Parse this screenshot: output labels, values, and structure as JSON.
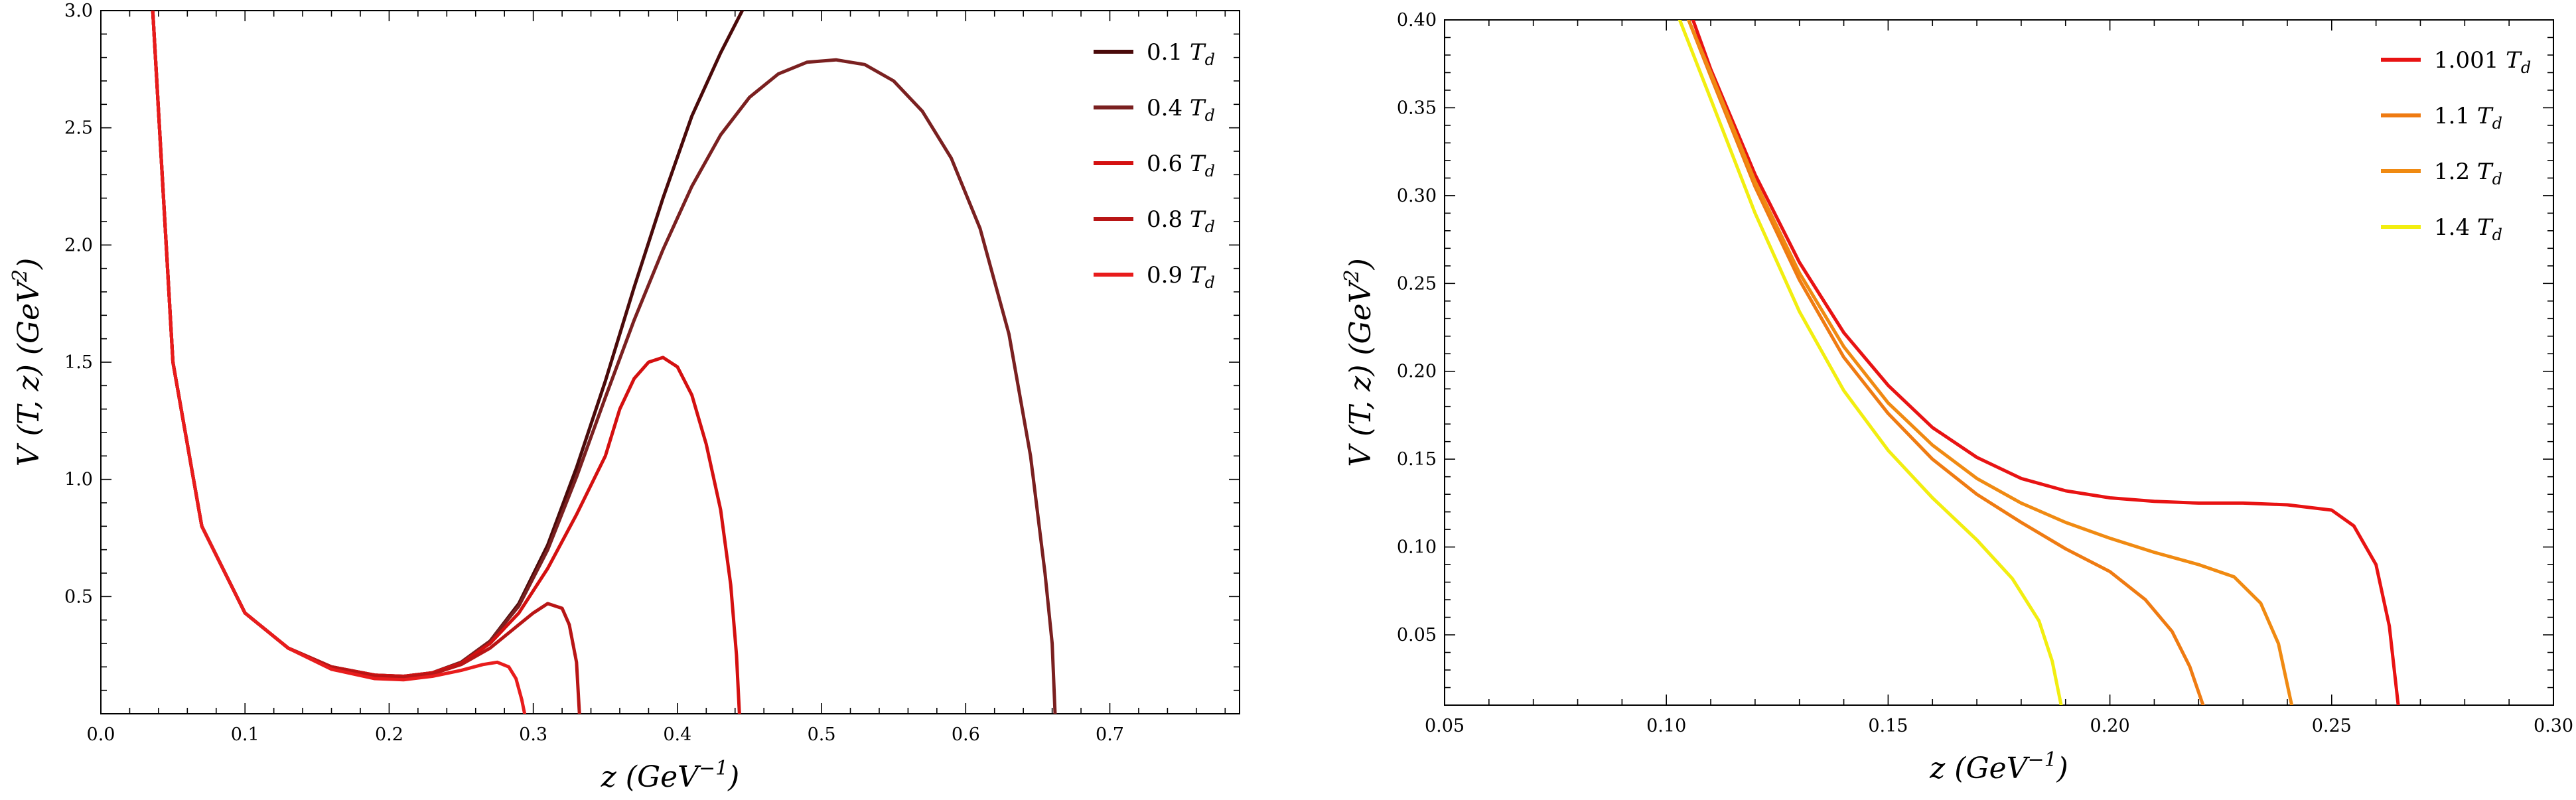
{
  "chart_data": [
    {
      "type": "line",
      "title": "",
      "xlabel": "z  (GeV⁻¹)",
      "ylabel": "V (T, z)  (GeV²)",
      "xlim": [
        0.0,
        0.79
      ],
      "ylim": [
        0.0,
        3.0
      ],
      "xticks": [
        0.0,
        0.1,
        0.2,
        0.3,
        0.4,
        0.5,
        0.6,
        0.7
      ],
      "xtick_labels": [
        "0.0",
        "0.1",
        "0.2",
        "0.3",
        "0.4",
        "0.5",
        "0.6",
        "0.7"
      ],
      "yticks": [
        0.5,
        1.0,
        1.5,
        2.0,
        2.5,
        3.0
      ],
      "ytick_labels": [
        "0.5",
        "1.0",
        "1.5",
        "2.0",
        "2.5",
        "3.0"
      ],
      "grid": false,
      "legend_position": "top-right",
      "series": [
        {
          "name": "0.1 Td",
          "color": "#4a0a0a",
          "points": [
            [
              0.036,
              3.0
            ],
            [
              0.05,
              1.5
            ],
            [
              0.07,
              0.8
            ],
            [
              0.1,
              0.43
            ],
            [
              0.13,
              0.28
            ],
            [
              0.16,
              0.2
            ],
            [
              0.19,
              0.165
            ],
            [
              0.21,
              0.16
            ],
            [
              0.23,
              0.175
            ],
            [
              0.25,
              0.22
            ],
            [
              0.27,
              0.31
            ],
            [
              0.29,
              0.47
            ],
            [
              0.31,
              0.72
            ],
            [
              0.33,
              1.05
            ],
            [
              0.35,
              1.42
            ],
            [
              0.37,
              1.82
            ],
            [
              0.39,
              2.2
            ],
            [
              0.41,
              2.55
            ],
            [
              0.43,
              2.82
            ],
            [
              0.445,
              3.0
            ]
          ]
        },
        {
          "name": "0.4 Td",
          "color": "#7a2020",
          "points": [
            [
              0.036,
              3.0
            ],
            [
              0.05,
              1.5
            ],
            [
              0.07,
              0.8
            ],
            [
              0.1,
              0.43
            ],
            [
              0.13,
              0.28
            ],
            [
              0.16,
              0.2
            ],
            [
              0.19,
              0.165
            ],
            [
              0.21,
              0.16
            ],
            [
              0.23,
              0.175
            ],
            [
              0.25,
              0.22
            ],
            [
              0.27,
              0.31
            ],
            [
              0.29,
              0.46
            ],
            [
              0.31,
              0.7
            ],
            [
              0.33,
              1.01
            ],
            [
              0.35,
              1.35
            ],
            [
              0.37,
              1.68
            ],
            [
              0.39,
              1.98
            ],
            [
              0.41,
              2.25
            ],
            [
              0.43,
              2.47
            ],
            [
              0.45,
              2.63
            ],
            [
              0.47,
              2.73
            ],
            [
              0.49,
              2.78
            ],
            [
              0.51,
              2.79
            ],
            [
              0.53,
              2.77
            ],
            [
              0.55,
              2.7
            ],
            [
              0.57,
              2.57
            ],
            [
              0.59,
              2.37
            ],
            [
              0.61,
              2.07
            ],
            [
              0.63,
              1.62
            ],
            [
              0.645,
              1.1
            ],
            [
              0.655,
              0.6
            ],
            [
              0.66,
              0.3
            ],
            [
              0.662,
              0.0
            ]
          ]
        },
        {
          "name": "0.6 Td",
          "color": "#d41010",
          "points": [
            [
              0.036,
              3.0
            ],
            [
              0.05,
              1.5
            ],
            [
              0.07,
              0.8
            ],
            [
              0.1,
              0.43
            ],
            [
              0.13,
              0.28
            ],
            [
              0.16,
              0.2
            ],
            [
              0.19,
              0.165
            ],
            [
              0.21,
              0.16
            ],
            [
              0.23,
              0.175
            ],
            [
              0.25,
              0.215
            ],
            [
              0.27,
              0.3
            ],
            [
              0.29,
              0.43
            ],
            [
              0.31,
              0.62
            ],
            [
              0.33,
              0.85
            ],
            [
              0.35,
              1.1
            ],
            [
              0.36,
              1.3
            ],
            [
              0.37,
              1.43
            ],
            [
              0.38,
              1.5
            ],
            [
              0.39,
              1.52
            ],
            [
              0.4,
              1.48
            ],
            [
              0.41,
              1.36
            ],
            [
              0.42,
              1.15
            ],
            [
              0.43,
              0.87
            ],
            [
              0.437,
              0.55
            ],
            [
              0.441,
              0.25
            ],
            [
              0.443,
              0.0
            ]
          ]
        },
        {
          "name": "0.8 Td",
          "color": "#b81515",
          "points": [
            [
              0.036,
              3.0
            ],
            [
              0.05,
              1.5
            ],
            [
              0.07,
              0.8
            ],
            [
              0.1,
              0.43
            ],
            [
              0.13,
              0.28
            ],
            [
              0.16,
              0.2
            ],
            [
              0.19,
              0.16
            ],
            [
              0.21,
              0.155
            ],
            [
              0.23,
              0.17
            ],
            [
              0.25,
              0.21
            ],
            [
              0.27,
              0.28
            ],
            [
              0.29,
              0.38
            ],
            [
              0.3,
              0.43
            ],
            [
              0.31,
              0.47
            ],
            [
              0.32,
              0.45
            ],
            [
              0.325,
              0.38
            ],
            [
              0.33,
              0.22
            ],
            [
              0.332,
              0.0
            ]
          ]
        },
        {
          "name": "0.9 Td",
          "color": "#e81c1c",
          "points": [
            [
              0.036,
              3.0
            ],
            [
              0.05,
              1.5
            ],
            [
              0.07,
              0.8
            ],
            [
              0.1,
              0.43
            ],
            [
              0.13,
              0.28
            ],
            [
              0.16,
              0.19
            ],
            [
              0.19,
              0.15
            ],
            [
              0.21,
              0.145
            ],
            [
              0.23,
              0.16
            ],
            [
              0.25,
              0.185
            ],
            [
              0.265,
              0.21
            ],
            [
              0.275,
              0.22
            ],
            [
              0.283,
              0.2
            ],
            [
              0.288,
              0.15
            ],
            [
              0.292,
              0.06
            ],
            [
              0.294,
              0.0
            ]
          ]
        }
      ]
    },
    {
      "type": "line",
      "title": "",
      "xlabel": "z  (GeV⁻¹)",
      "ylabel": "V (T, z)  (GeV²)",
      "xlim": [
        0.05,
        0.3
      ],
      "ylim": [
        0.01,
        0.4
      ],
      "xticks": [
        0.05,
        0.1,
        0.15,
        0.2,
        0.25,
        0.3
      ],
      "xtick_labels": [
        "0.05",
        "0.10",
        "0.15",
        "0.20",
        "0.25",
        "0.30"
      ],
      "yticks": [
        0.05,
        0.1,
        0.15,
        0.2,
        0.25,
        0.3,
        0.35,
        0.4
      ],
      "ytick_labels": [
        "0.05",
        "0.10",
        "0.15",
        "0.20",
        "0.25",
        "0.30",
        "0.35",
        "0.40"
      ],
      "grid": false,
      "legend_position": "top-right",
      "series": [
        {
          "name": "1.001 Td",
          "color": "#e81313",
          "points": [
            [
              0.106,
              0.4
            ],
            [
              0.11,
              0.372
            ],
            [
              0.12,
              0.312
            ],
            [
              0.13,
              0.262
            ],
            [
              0.14,
              0.222
            ],
            [
              0.15,
              0.192
            ],
            [
              0.16,
              0.168
            ],
            [
              0.17,
              0.151
            ],
            [
              0.18,
              0.139
            ],
            [
              0.19,
              0.132
            ],
            [
              0.2,
              0.128
            ],
            [
              0.21,
              0.126
            ],
            [
              0.22,
              0.125
            ],
            [
              0.23,
              0.125
            ],
            [
              0.24,
              0.124
            ],
            [
              0.25,
              0.121
            ],
            [
              0.255,
              0.112
            ],
            [
              0.26,
              0.09
            ],
            [
              0.263,
              0.055
            ],
            [
              0.265,
              0.01
            ]
          ]
        },
        {
          "name": "1.1 Td",
          "color": "#ef7b12",
          "points": [
            [
              0.105,
              0.4
            ],
            [
              0.11,
              0.368
            ],
            [
              0.12,
              0.305
            ],
            [
              0.13,
              0.252
            ],
            [
              0.14,
              0.208
            ],
            [
              0.15,
              0.176
            ],
            [
              0.16,
              0.15
            ],
            [
              0.17,
              0.13
            ],
            [
              0.18,
              0.114
            ],
            [
              0.19,
              0.099
            ],
            [
              0.2,
              0.086
            ],
            [
              0.208,
              0.07
            ],
            [
              0.214,
              0.052
            ],
            [
              0.218,
              0.032
            ],
            [
              0.221,
              0.01
            ]
          ]
        },
        {
          "name": "1.2 Td",
          "color": "#f08a12",
          "points": [
            [
              0.105,
              0.4
            ],
            [
              0.11,
              0.37
            ],
            [
              0.12,
              0.308
            ],
            [
              0.13,
              0.256
            ],
            [
              0.14,
              0.214
            ],
            [
              0.15,
              0.182
            ],
            [
              0.16,
              0.158
            ],
            [
              0.17,
              0.139
            ],
            [
              0.18,
              0.125
            ],
            [
              0.19,
              0.114
            ],
            [
              0.2,
              0.105
            ],
            [
              0.21,
              0.097
            ],
            [
              0.22,
              0.09
            ],
            [
              0.228,
              0.083
            ],
            [
              0.234,
              0.068
            ],
            [
              0.238,
              0.045
            ],
            [
              0.241,
              0.01
            ]
          ]
        },
        {
          "name": "1.4 Td",
          "color": "#f2ee10",
          "points": [
            [
              0.103,
              0.4
            ],
            [
              0.11,
              0.355
            ],
            [
              0.12,
              0.29
            ],
            [
              0.13,
              0.234
            ],
            [
              0.14,
              0.189
            ],
            [
              0.15,
              0.155
            ],
            [
              0.16,
              0.128
            ],
            [
              0.17,
              0.104
            ],
            [
              0.178,
              0.082
            ],
            [
              0.184,
              0.058
            ],
            [
              0.187,
              0.035
            ],
            [
              0.189,
              0.01
            ]
          ]
        }
      ]
    }
  ]
}
